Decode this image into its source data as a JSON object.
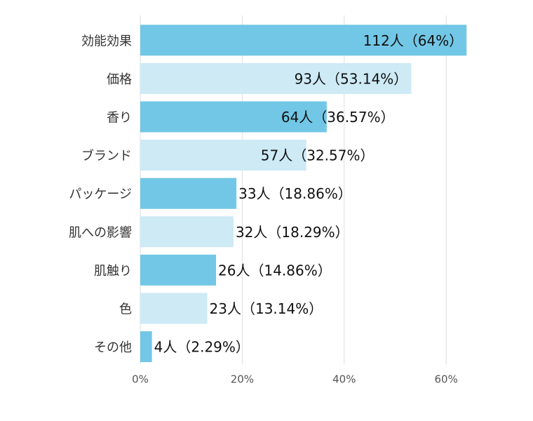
{
  "chart_data": {
    "type": "barh",
    "categories": [
      "効能効果",
      "価格",
      "香り",
      "ブランド",
      "パッケージ",
      "肌への影響",
      "肌触り",
      "色",
      "その他"
    ],
    "values": [
      64,
      53.14,
      36.57,
      32.57,
      18.86,
      18.29,
      14.86,
      13.14,
      2.29
    ],
    "value_labels": [
      "112人（64%）",
      "93人（53.14%）",
      "64人（36.57%）",
      "57人（32.57%）",
      "33人（18.86%）",
      "32人（18.29%）",
      "26人（14.86%）",
      "23人（13.14%）",
      "4人（2.29%）"
    ],
    "colors": [
      "#72c7e6",
      "#cdeaf5",
      "#72c7e6",
      "#cdeaf5",
      "#72c7e6",
      "#cdeaf5",
      "#72c7e6",
      "#cdeaf5",
      "#72c7e6"
    ],
    "xlim": [
      0,
      65
    ],
    "xticks": [
      {
        "value": 0,
        "label": "0%"
      },
      {
        "value": 20,
        "label": "20%"
      },
      {
        "value": 40,
        "label": "40%"
      },
      {
        "value": 60,
        "label": "60%"
      }
    ],
    "grid": true
  }
}
